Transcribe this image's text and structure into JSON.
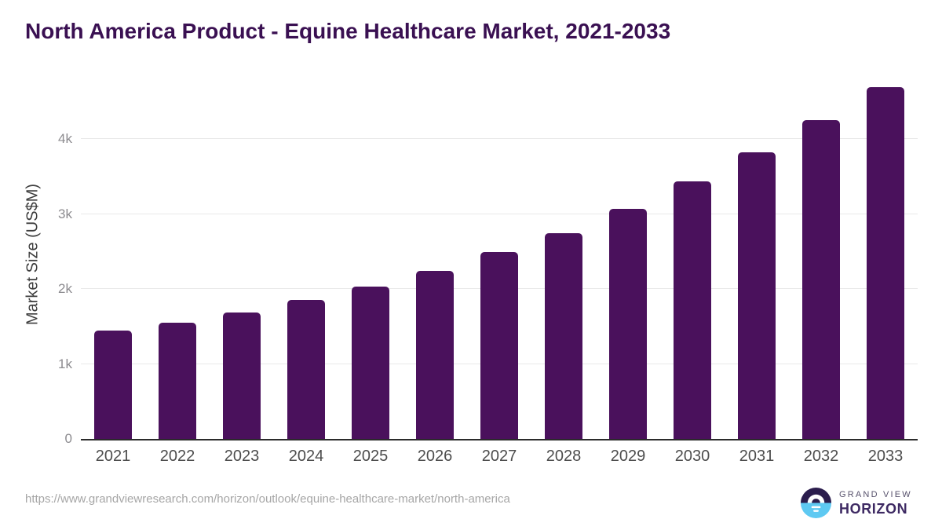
{
  "title": "North America Product - Equine Healthcare Market, 2021-2033",
  "chart_data": {
    "type": "bar",
    "title": "North America Product - Equine Healthcare Market, 2021-2033",
    "categories": [
      "2021",
      "2022",
      "2023",
      "2024",
      "2025",
      "2026",
      "2027",
      "2028",
      "2029",
      "2030",
      "2031",
      "2032",
      "2033"
    ],
    "values": [
      1450,
      1555,
      1690,
      1850,
      2030,
      2240,
      2490,
      2750,
      3075,
      3440,
      3825,
      4250,
      4700
    ],
    "xlabel": "",
    "ylabel": "Market Size (US$M)",
    "ylim": [
      0,
      4800
    ],
    "yticks": [
      {
        "value": 0,
        "label": "0"
      },
      {
        "value": 1000,
        "label": "1k"
      },
      {
        "value": 2000,
        "label": "2k"
      },
      {
        "value": 3000,
        "label": "3k"
      },
      {
        "value": 4000,
        "label": "4k"
      }
    ],
    "grid": true,
    "legend": "none",
    "bar_color": "#4a115c"
  },
  "footer": {
    "source_url": "https://www.grandviewresearch.com/horizon/outlook/equine-healthcare-market/north-america",
    "logo": {
      "line1": "GRAND VIEW",
      "line2": "HORIZON"
    }
  },
  "colors": {
    "title_text": "#3a1052",
    "bar_fill": "#4a115c",
    "gridline": "#e8e8e8",
    "axis_line": "#2b2b2b",
    "ytick_text": "#8c8b8f",
    "xtick_text": "#4d4d4d",
    "axis_title_text": "#3d3d3d",
    "url_text": "#a6a6a6",
    "logo_dark": "#2b1d4d",
    "logo_blue": "#5ec9f2"
  }
}
